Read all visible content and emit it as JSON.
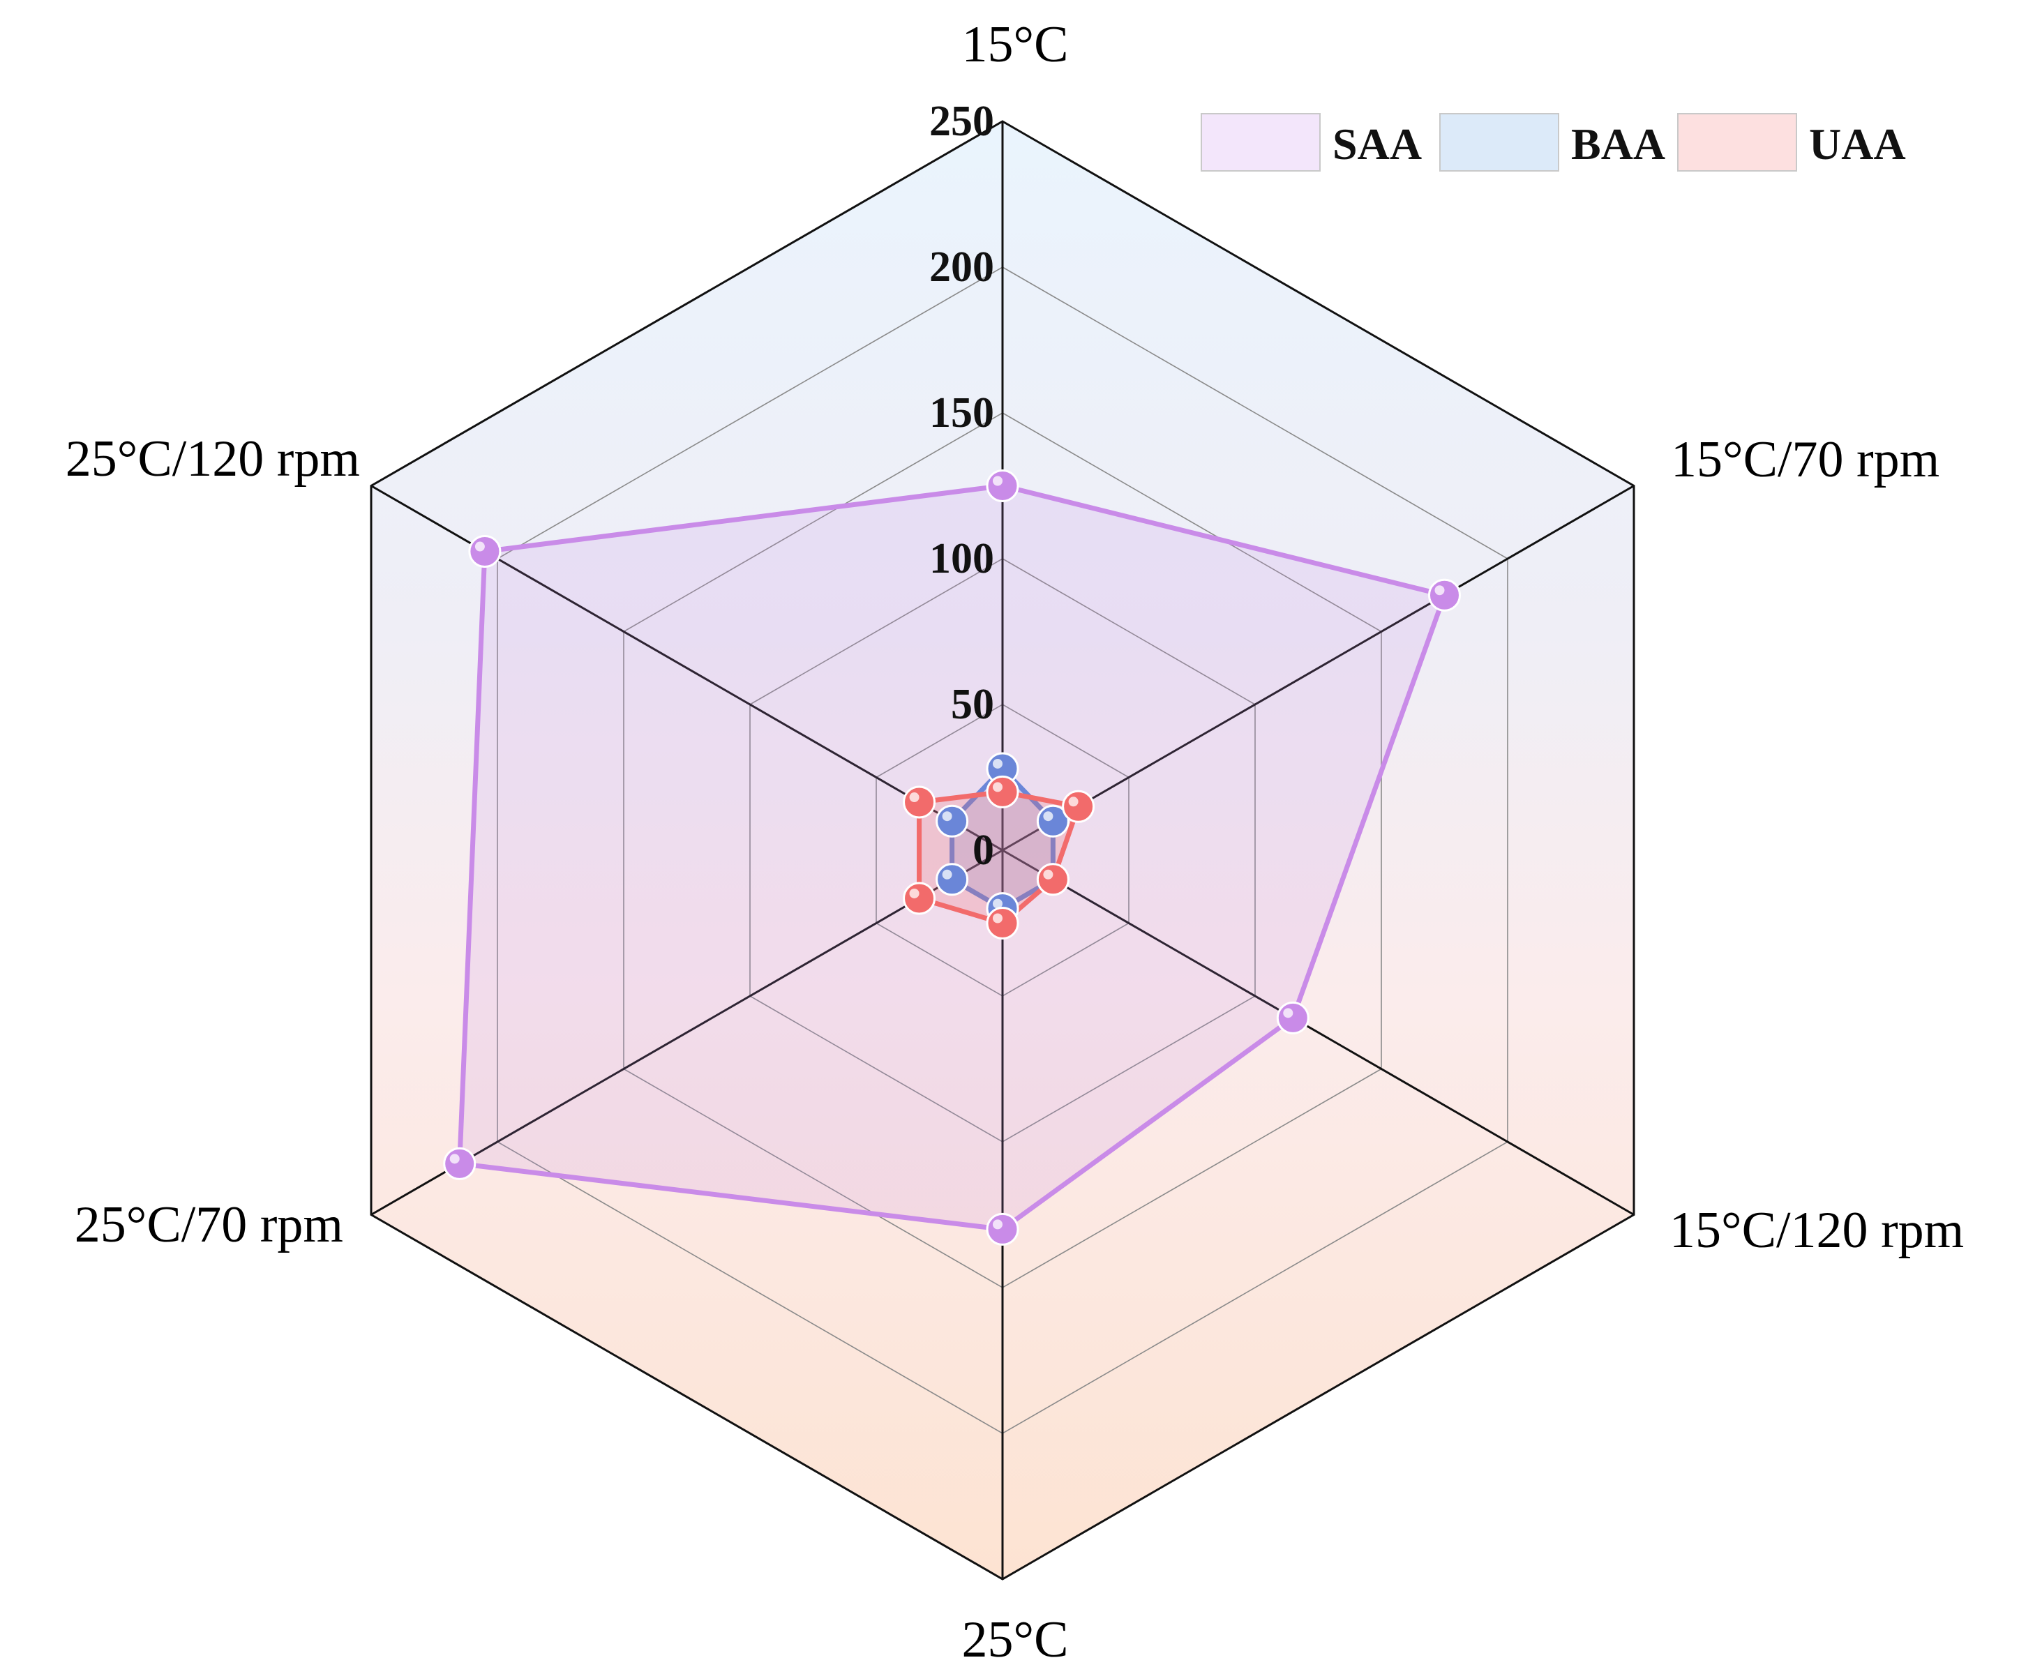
{
  "chart_data": {
    "type": "radar",
    "axes": [
      "15°C",
      "15°C/70 rpm",
      "15°C/120 rpm",
      "25°C",
      "25°C/70 rpm",
      "25°C/120 rpm"
    ],
    "ticks": [
      "0",
      "50",
      "100",
      "150",
      "200",
      "250"
    ],
    "rmax": 250,
    "grid": true,
    "legend_position": "top-right",
    "series": [
      {
        "name": "SAA",
        "values": [
          125,
          175,
          115,
          130,
          215,
          205
        ],
        "color": "#c98be8",
        "legend_fill": "#f3e6fb"
      },
      {
        "name": "BAA",
        "values": [
          28,
          20,
          20,
          20,
          20,
          20
        ],
        "color": "#6a86d8",
        "legend_fill": "#dceaf9"
      },
      {
        "name": "UAA",
        "values": [
          20,
          30,
          20,
          25,
          33,
          33
        ],
        "color": "#f26b6b",
        "legend_fill": "#fde0e0"
      }
    ]
  }
}
